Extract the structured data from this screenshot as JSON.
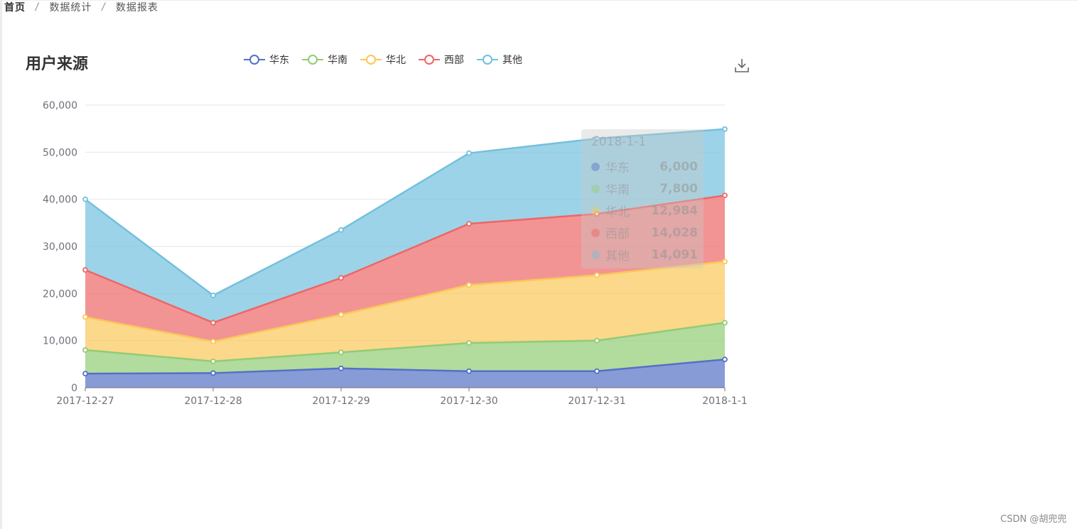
{
  "breadcrumb": {
    "home": "首页",
    "sep": "/",
    "level2": "数据统计",
    "level3": "数据报表"
  },
  "chart_data": {
    "type": "area",
    "stacked": true,
    "title": "用户来源",
    "categories": [
      "2017-12-27",
      "2017-12-28",
      "2017-12-29",
      "2017-12-30",
      "2017-12-31",
      "2018-1-1"
    ],
    "ylim": [
      0,
      60000
    ],
    "yticks": [
      "0",
      "10,000",
      "20,000",
      "30,000",
      "40,000",
      "50,000",
      "60,000"
    ],
    "grid": true,
    "legend_position": "top",
    "series": [
      {
        "name": "华东",
        "color": "#5470c6",
        "values": [
          3000,
          3100,
          4100,
          3500,
          3500,
          6000
        ]
      },
      {
        "name": "华南",
        "color": "#91cc75",
        "values": [
          5000,
          2500,
          3400,
          6000,
          6500,
          7800
        ]
      },
      {
        "name": "华北",
        "color": "#fac858",
        "values": [
          7000,
          4200,
          8000,
          12300,
          13900,
          12984
        ]
      },
      {
        "name": "西部",
        "color": "#ee6666",
        "values": [
          10000,
          4000,
          7800,
          13000,
          13000,
          14028
        ]
      },
      {
        "name": "其他",
        "color": "#73c0de",
        "values": [
          15000,
          5800,
          10200,
          15000,
          16000,
          14091
        ]
      }
    ]
  },
  "tooltip": {
    "title": "2018-1-1",
    "rows": [
      {
        "name": "华东",
        "value": "6,000"
      },
      {
        "name": "华南",
        "value": "7,800"
      },
      {
        "name": "华北",
        "value": "12,984"
      },
      {
        "name": "西部",
        "value": "14,028"
      },
      {
        "name": "其他",
        "value": "14,091"
      }
    ]
  },
  "watermark": "CSDN @胡兜兜"
}
